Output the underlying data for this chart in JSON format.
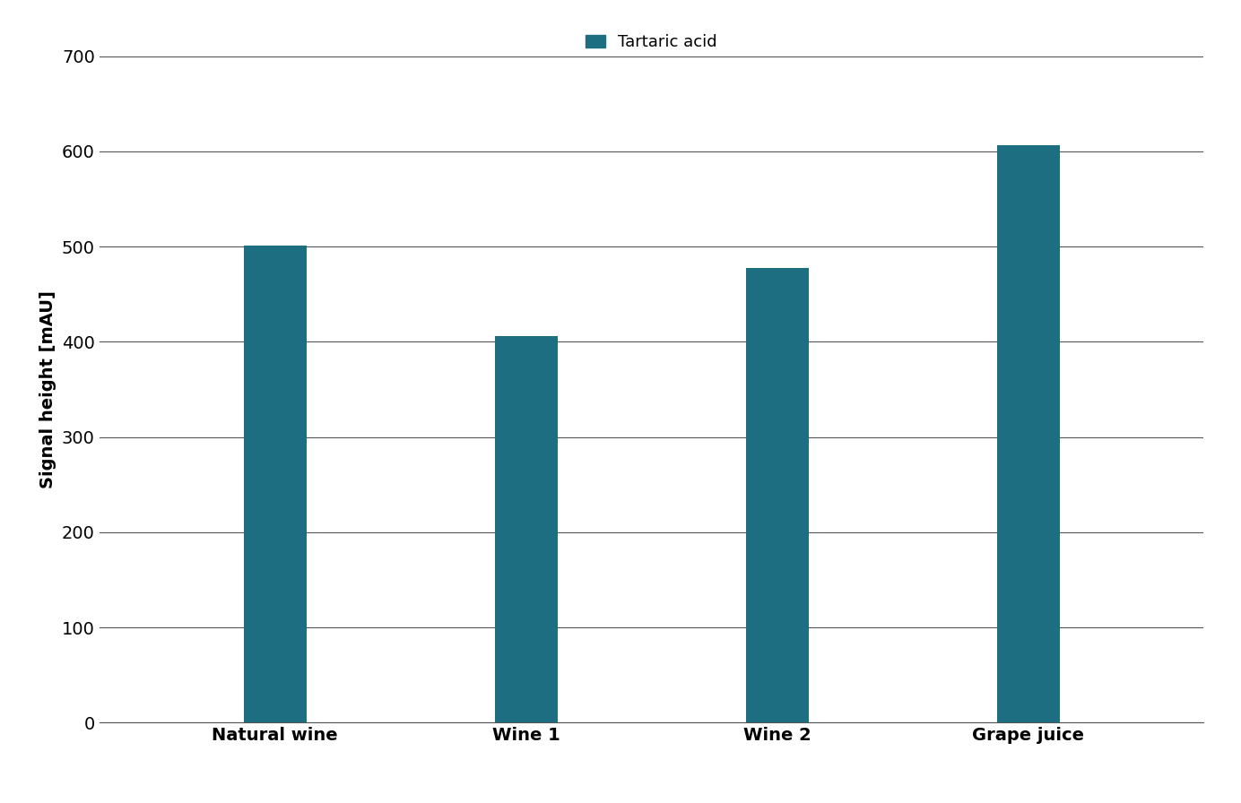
{
  "categories": [
    "Natural wine",
    "Wine 1",
    "Wine 2",
    "Grape juice"
  ],
  "values": [
    501,
    406,
    478,
    607
  ],
  "bar_color": "#1e6e82",
  "legend_label": "Tartaric acid",
  "ylabel": "Signal height [mAU]",
  "ylim": [
    0,
    700
  ],
  "yticks": [
    0,
    100,
    200,
    300,
    400,
    500,
    600,
    700
  ],
  "background_color": "#ffffff",
  "grid_color": "#555555",
  "bar_width": 0.25,
  "tick_fontsize": 14,
  "axis_label_fontsize": 14,
  "legend_fontsize": 13
}
